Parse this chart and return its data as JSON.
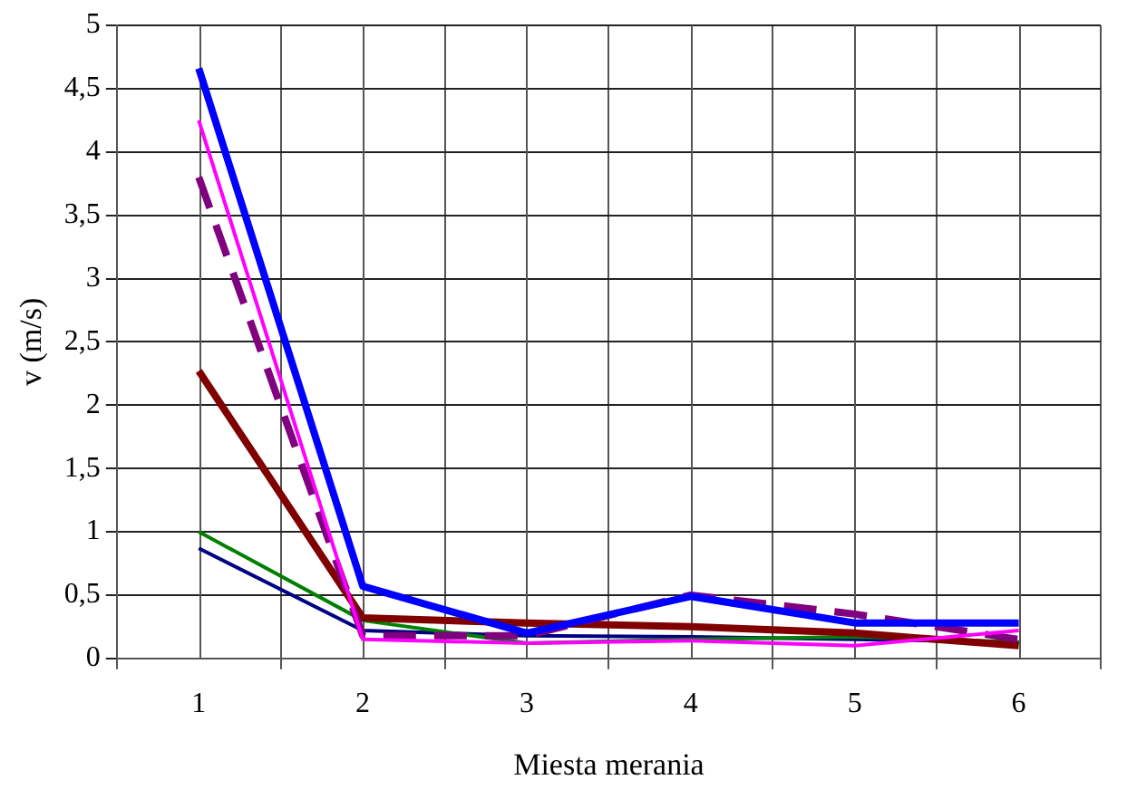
{
  "chart_data": {
    "type": "line",
    "xlabel": "Miesta merania",
    "ylabel": "v (m/s)",
    "categories": [
      "1",
      "2",
      "3",
      "4",
      "5",
      "6"
    ],
    "series": [
      {
        "color": "#0000ff",
        "values": [
          4.66,
          0.57,
          0.2,
          0.49,
          0.28,
          0.28
        ]
      },
      {
        "color": "#ff00ff",
        "values": [
          4.25,
          0.15,
          0.12,
          0.14,
          0.1,
          0.22
        ]
      },
      {
        "color": "#800080",
        "line_style": "dashed",
        "values": [
          3.8,
          0.18,
          0.18,
          0.5,
          0.35,
          0.15
        ]
      },
      {
        "color": "#800000",
        "values": [
          2.27,
          0.32,
          0.28,
          0.25,
          0.2,
          0.1
        ]
      },
      {
        "color": "#008000",
        "values": [
          1.0,
          0.3,
          0.12,
          0.15,
          0.17,
          0.13
        ]
      },
      {
        "color": "#000080",
        "values": [
          0.87,
          0.22,
          0.18,
          0.17,
          0.15,
          0.13
        ]
      }
    ],
    "ylim": [
      0,
      5
    ],
    "yticks": [
      0,
      {
        "value": 0.5,
        "label": "0,5"
      },
      1,
      {
        "value": 1.5,
        "label": "1,5"
      },
      2,
      {
        "value": 2.5,
        "label": "2,5"
      },
      3,
      {
        "value": 3.5,
        "label": "3,5"
      },
      4,
      {
        "value": 4.5,
        "label": "4,5"
      },
      5
    ],
    "grid": true,
    "legend": false,
    "marker": "none",
    "line_style": "solid"
  }
}
